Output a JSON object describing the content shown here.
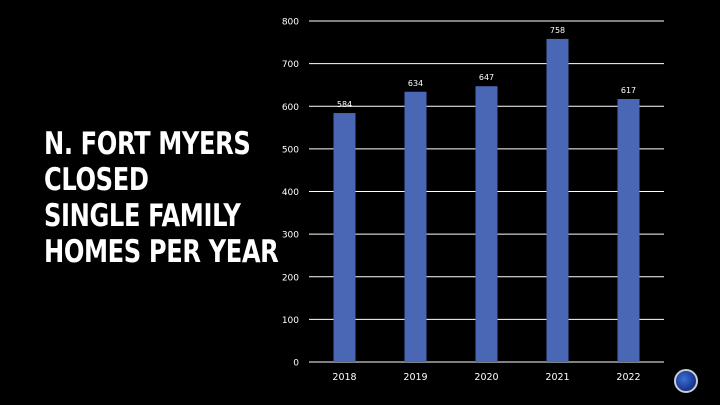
{
  "title_lines": [
    "N. FORT MYERS",
    "CLOSED",
    "SINGLE FAMILY",
    "HOMES PER YEAR"
  ],
  "colors": {
    "background": "#000000",
    "bar": "#4a67b5",
    "grid": "#ffffff",
    "text": "#ffffff"
  },
  "chart_data": {
    "type": "bar",
    "categories": [
      "2018",
      "2019",
      "2020",
      "2021",
      "2022"
    ],
    "values": [
      584,
      634,
      647,
      758,
      617
    ],
    "data_labels": [
      "584",
      "634",
      "647",
      "758",
      "617"
    ],
    "yticks": [
      "0",
      "100",
      "200",
      "300",
      "400",
      "500",
      "600",
      "700",
      "800"
    ],
    "ylim": [
      0,
      800
    ],
    "grid": true,
    "legend": "none"
  },
  "logo": {
    "icon": "globe-logo-icon"
  }
}
